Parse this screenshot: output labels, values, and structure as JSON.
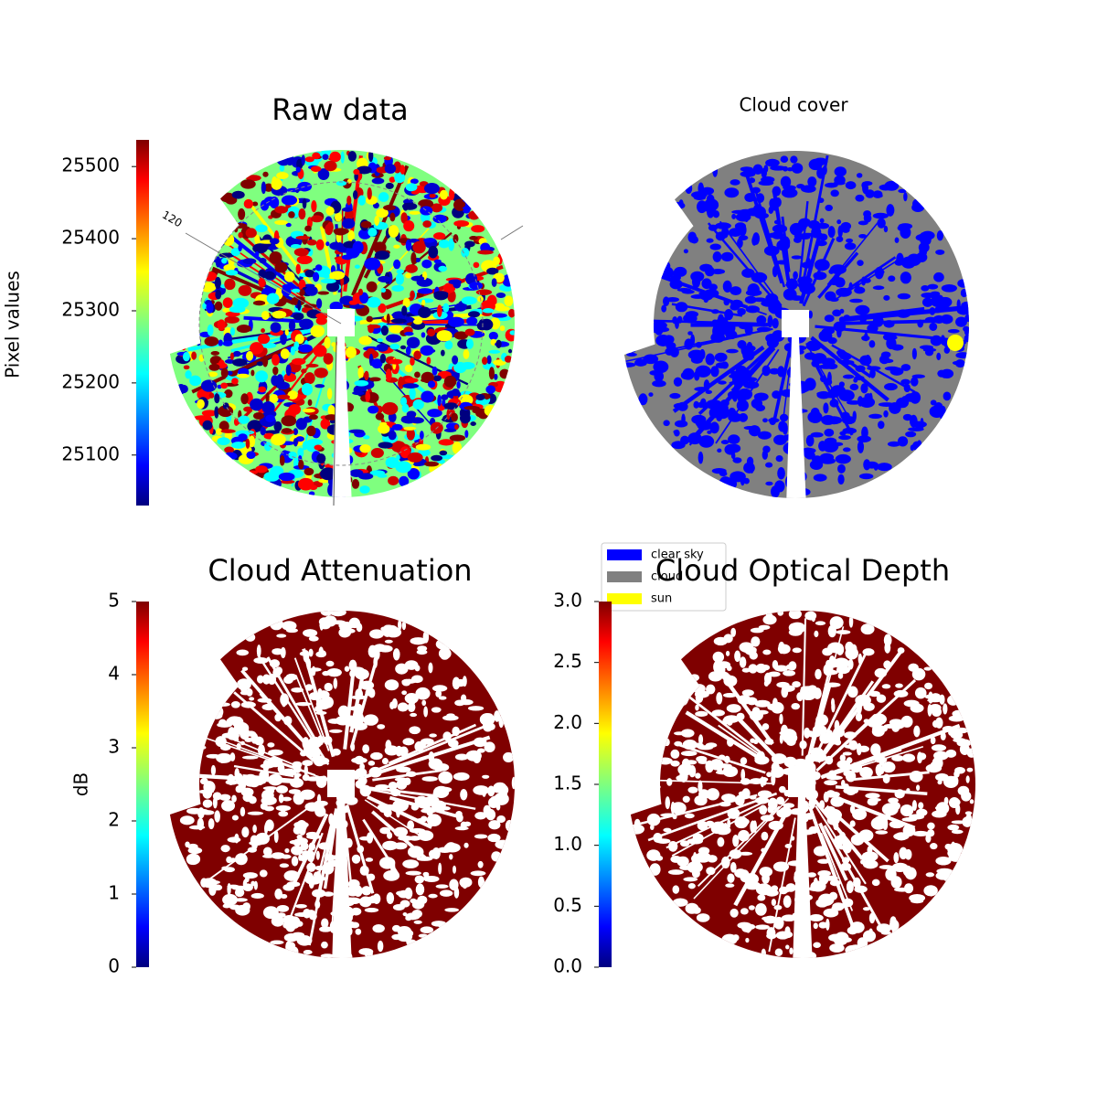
{
  "chart_data": [
    {
      "type": "image",
      "title": "Raw data",
      "colorbar_label": "Pixel values",
      "colormap": "jet",
      "clim": [
        25030,
        25537
      ],
      "cticks": [
        25100,
        25200,
        25300,
        25400,
        25500
      ],
      "annotations": [
        "120"
      ]
    },
    {
      "type": "image",
      "title": "Cloud cover",
      "legend": [
        {
          "name": "clear sky",
          "color": "#0000ff"
        },
        {
          "name": "cloud",
          "color": "#808080"
        },
        {
          "name": "sun",
          "color": "#ffff00"
        }
      ]
    },
    {
      "type": "image",
      "title": "Cloud Attenuation",
      "colorbar_label": "dB",
      "colormap": "jet",
      "clim": [
        0,
        5
      ],
      "cticks": [
        0,
        1,
        2,
        3,
        4,
        5
      ]
    },
    {
      "type": "image",
      "title": "Cloud Optical Depth",
      "colormap": "jet",
      "clim": [
        0,
        3
      ],
      "cticks": [
        {
          "value": 0,
          "label": "0.0"
        },
        {
          "value": 0.5,
          "label": "0.5"
        },
        {
          "value": 1,
          "label": "1.0"
        },
        {
          "value": 1.5,
          "label": "1.5"
        },
        {
          "value": 2,
          "label": "2.0"
        },
        {
          "value": 2.5,
          "label": "2.5"
        },
        {
          "value": 3,
          "label": "3.0"
        }
      ]
    }
  ]
}
